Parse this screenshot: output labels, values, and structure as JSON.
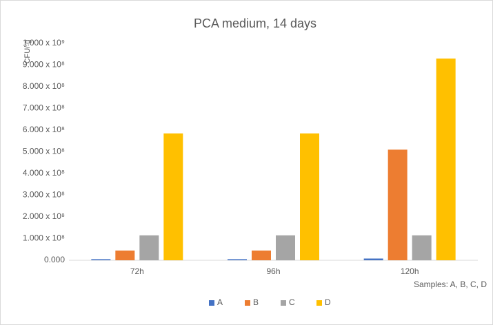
{
  "chart_data": {
    "type": "bar",
    "title": "PCA medium, 14 days",
    "y_label": "CFU/ g",
    "x_label": "Samples: A, B, C, D",
    "categories": [
      "72h",
      "96h",
      "120h"
    ],
    "series": [
      {
        "name": "A",
        "color": "#4472c4",
        "values": [
          5000000,
          5000000,
          8000000
        ]
      },
      {
        "name": "B",
        "color": "#ed7d31",
        "values": [
          45000000,
          45000000,
          510000000
        ]
      },
      {
        "name": "C",
        "color": "#a5a5a5",
        "values": [
          115000000,
          115000000,
          115000000
        ]
      },
      {
        "name": "D",
        "color": "#ffc000",
        "values": [
          585000000,
          585000000,
          930000000
        ]
      }
    ],
    "ylim": [
      0,
      1000000000
    ],
    "yticks": [
      {
        "value": 0,
        "label": "0.000"
      },
      {
        "value": 100000000,
        "label": "1.000 x 10⁸"
      },
      {
        "value": 200000000,
        "label": "2.000 x 10⁸"
      },
      {
        "value": 300000000,
        "label": "3.000 x 10⁸"
      },
      {
        "value": 400000000,
        "label": "4.000 x 10⁸"
      },
      {
        "value": 500000000,
        "label": "5.000 x 10⁸"
      },
      {
        "value": 600000000,
        "label": "6.000 x 10⁸"
      },
      {
        "value": 700000000,
        "label": "7.000 x 10⁸"
      },
      {
        "value": 800000000,
        "label": "8.000 x 10⁸"
      },
      {
        "value": 900000000,
        "label": "9.000 x 10⁸"
      },
      {
        "value": 1000000000,
        "label": "1.000 x 10⁹"
      }
    ],
    "grid": false,
    "legend": "bottom"
  }
}
